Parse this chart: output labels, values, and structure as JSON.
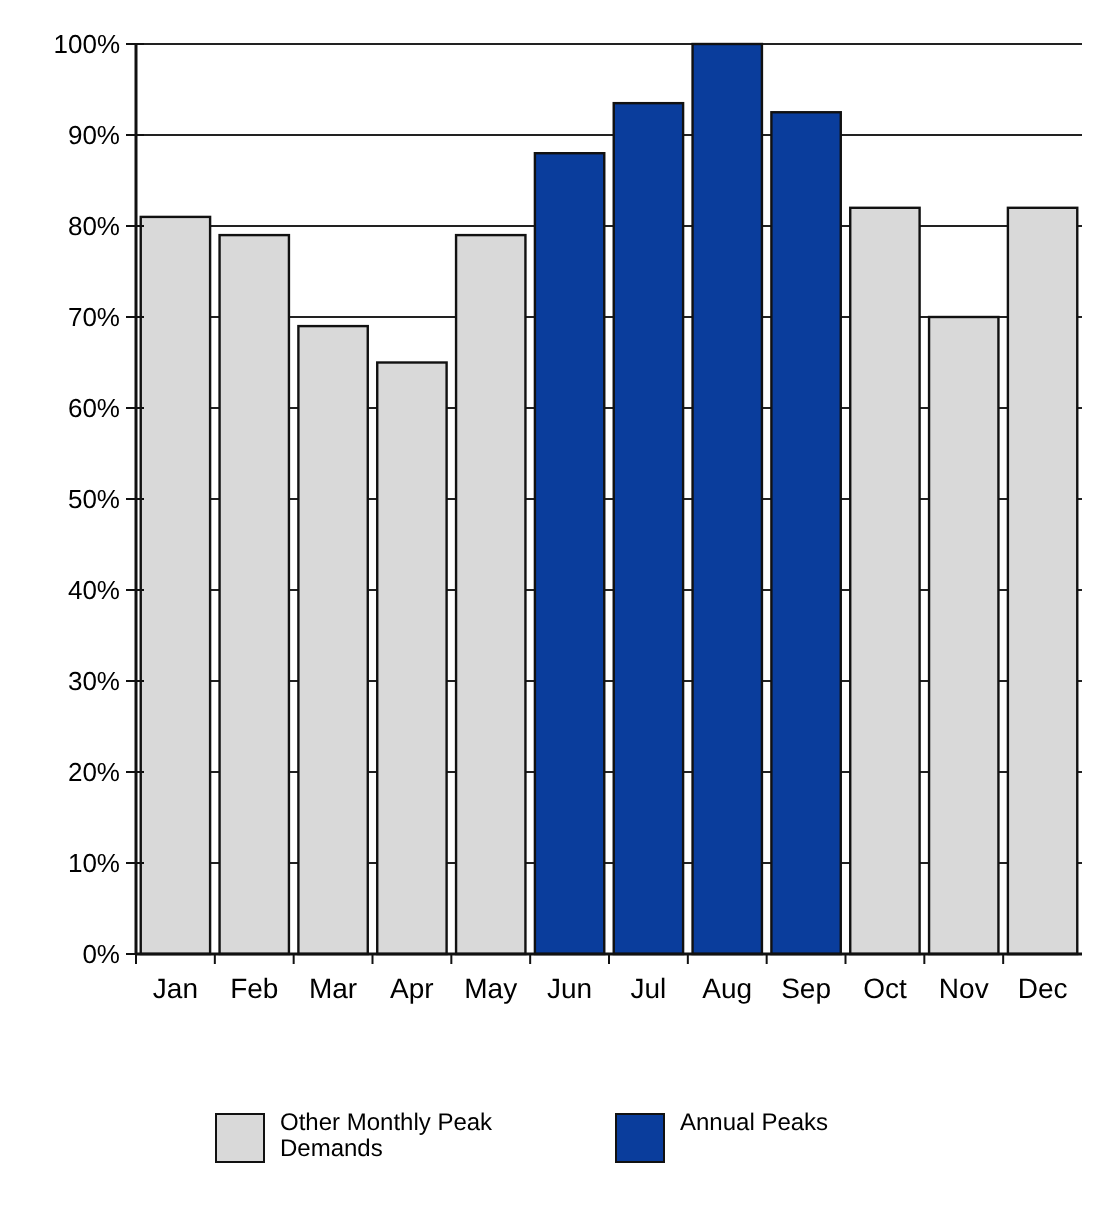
{
  "chart_data": {
    "type": "bar",
    "categories": [
      "Jan",
      "Feb",
      "Mar",
      "Apr",
      "May",
      "Jun",
      "Jul",
      "Aug",
      "Sep",
      "Oct",
      "Nov",
      "Dec"
    ],
    "series": [
      {
        "name": "Other Monthly Peak Demands",
        "color": "#d9d9d9",
        "values": [
          81,
          79,
          69,
          65,
          79,
          null,
          null,
          null,
          null,
          82,
          70,
          82
        ]
      },
      {
        "name": "Annual Peaks",
        "color": "#0a3d9c",
        "values": [
          null,
          null,
          null,
          null,
          null,
          88,
          93.5,
          100,
          92.5,
          null,
          null,
          null
        ]
      }
    ],
    "ylim": [
      0,
      100
    ],
    "yticks": [
      {
        "value": 0,
        "label": "0%"
      },
      {
        "value": 10,
        "label": "10%"
      },
      {
        "value": 20,
        "label": "20%"
      },
      {
        "value": 30,
        "label": "30%"
      },
      {
        "value": 40,
        "label": "40%"
      },
      {
        "value": 50,
        "label": "50%"
      },
      {
        "value": 60,
        "label": "60%"
      },
      {
        "value": 70,
        "label": "70%"
      },
      {
        "value": 80,
        "label": "80%"
      },
      {
        "value": 90,
        "label": "90%"
      },
      {
        "value": 100,
        "label": "100%"
      }
    ],
    "grid": "y",
    "legend": "bottom"
  }
}
